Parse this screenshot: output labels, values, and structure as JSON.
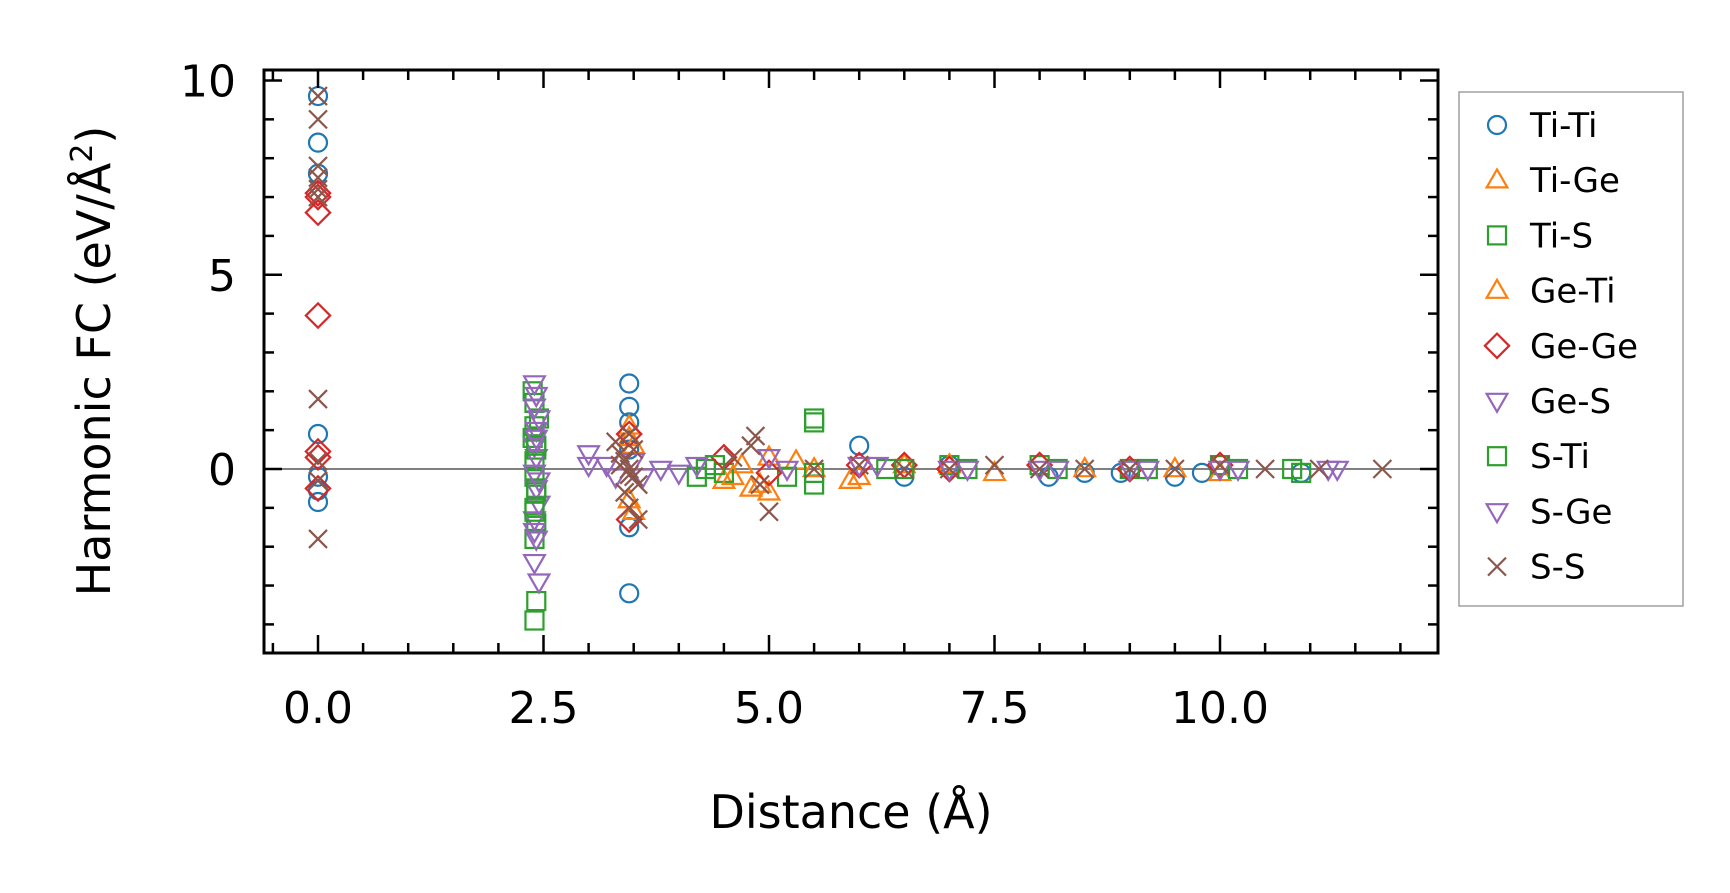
{
  "chart_data": {
    "type": "scatter",
    "title": "",
    "xlabel": "Distance (Å)",
    "ylabel_main": "Harmonic FC (eV/Å",
    "ylabel_sup": "2",
    "ylabel_close": ")",
    "xlim": [
      -0.5,
      12.5
    ],
    "ylim": [
      -4.75,
      10.4
    ],
    "x_ticks": [
      0.0,
      2.5,
      5.0,
      7.5,
      10.0
    ],
    "x_tick_labels": [
      "0.0",
      "2.5",
      "5.0",
      "7.5",
      "10.0"
    ],
    "y_ticks": [
      0,
      5,
      10
    ],
    "y_tick_labels": [
      "0",
      "5",
      "10"
    ],
    "reference_line_y": 0,
    "legend_position": "right",
    "series": [
      {
        "name": "Ti-Ti",
        "marker": "circle",
        "color": "#1f77b4",
        "x": [
          0,
          0,
          0,
          0,
          0,
          0,
          0,
          3.45,
          3.45,
          3.45,
          3.45,
          3.45,
          3.45,
          6.0,
          6.5,
          7.0,
          8.1,
          8.5,
          8.9,
          9.5,
          9.8,
          10.9
        ],
        "y": [
          9.6,
          8.4,
          7.6,
          0.9,
          -0.2,
          -0.55,
          -0.85,
          2.2,
          1.6,
          1.2,
          0.5,
          -1.5,
          -3.2,
          0.6,
          -0.2,
          0.1,
          -0.2,
          -0.1,
          -0.1,
          -0.2,
          -0.1,
          -0.1
        ]
      },
      {
        "name": "Ti-Ge",
        "marker": "triangle-up",
        "color": "#ff7f0e",
        "x": [
          3.45,
          3.45,
          3.5,
          4.5,
          4.7,
          4.9,
          5.0,
          5.3,
          5.9,
          6.5,
          7.5,
          9.5
        ],
        "y": [
          1.1,
          0.8,
          -1.1,
          -0.3,
          0.1,
          -0.4,
          0.3,
          0.2,
          -0.3,
          0.1,
          -0.1,
          0.0
        ]
      },
      {
        "name": "Ti-S",
        "marker": "square",
        "color": "#2ca02c",
        "x": [
          2.38,
          2.4,
          2.45,
          2.4,
          2.38,
          2.42,
          2.4,
          2.4,
          2.42,
          2.4,
          2.42,
          2.4,
          2.42,
          2.4,
          4.3,
          4.5,
          5.2,
          5.5,
          5.5,
          5.5,
          6.3,
          7.0,
          8.0,
          9.0,
          10.0,
          10.9
        ],
        "y": [
          2.0,
          1.7,
          1.3,
          1.1,
          0.8,
          0.5,
          0.2,
          -0.2,
          -0.6,
          -1.0,
          -1.4,
          -1.8,
          -3.4,
          -3.9,
          0.0,
          -0.1,
          -0.2,
          1.3,
          1.2,
          -0.4,
          0.0,
          0.1,
          0.1,
          0.0,
          0.1,
          -0.1
        ]
      },
      {
        "name": "Ge-Ti",
        "marker": "triangle-up",
        "color": "#ff7f0e",
        "x": [
          3.45,
          3.5,
          4.6,
          4.8,
          5.0,
          5.5,
          6.0,
          7.0,
          8.5,
          10.0
        ],
        "y": [
          -0.8,
          0.6,
          -0.2,
          -0.5,
          -0.6,
          0.0,
          -0.2,
          0.1,
          0.0,
          -0.1
        ]
      },
      {
        "name": "Ge-Ge",
        "marker": "diamond",
        "color": "#d62728",
        "x": [
          0,
          0,
          0,
          0,
          0,
          0,
          0,
          3.45,
          3.45,
          4.5,
          5.0,
          6.0,
          6.5,
          7.0,
          8.0,
          9.0,
          10.0
        ],
        "y": [
          7.1,
          7.0,
          6.6,
          3.95,
          0.45,
          0.3,
          -0.5,
          0.9,
          -1.3,
          0.3,
          -0.1,
          0.1,
          0.1,
          0.0,
          0.1,
          0.0,
          0.1
        ]
      },
      {
        "name": "Ge-S",
        "marker": "triangle-down",
        "color": "#9467bd",
        "x": [
          2.4,
          2.42,
          2.4,
          2.45,
          2.42,
          2.4,
          2.42,
          2.4,
          2.42,
          2.45,
          2.4,
          2.42,
          2.4,
          2.45,
          3.0,
          3.0,
          3.3,
          3.5,
          3.8,
          4.0,
          5.0,
          6.0,
          7.0,
          8.0,
          9.0,
          10.0,
          11.3
        ],
        "y": [
          2.2,
          1.9,
          1.6,
          1.3,
          1.0,
          0.6,
          0.3,
          -0.1,
          -0.5,
          -0.9,
          -1.3,
          -1.8,
          -2.4,
          -2.9,
          0.4,
          0.1,
          -0.2,
          0.2,
          0.0,
          -0.1,
          0.3,
          0.1,
          0.0,
          0.0,
          0.0,
          0.0,
          0.0
        ]
      },
      {
        "name": "S-Ti",
        "marker": "square",
        "color": "#2ca02c",
        "x": [
          2.42,
          2.42,
          2.4,
          4.2,
          4.4,
          5.5,
          6.5,
          7.2,
          8.2,
          9.2,
          10.2,
          10.8
        ],
        "y": [
          0.6,
          -0.5,
          -1.1,
          -0.2,
          0.1,
          -0.1,
          0.0,
          0.0,
          0.0,
          0.0,
          0.0,
          0.0
        ]
      },
      {
        "name": "S-Ge",
        "marker": "triangle-down",
        "color": "#9467bd",
        "x": [
          2.42,
          2.45,
          2.4,
          3.2,
          3.6,
          4.2,
          5.2,
          6.2,
          7.2,
          8.2,
          9.2,
          10.2,
          11.2
        ],
        "y": [
          0.8,
          -0.3,
          -1.6,
          0.1,
          -0.2,
          0.1,
          0.0,
          0.1,
          0.0,
          0.0,
          0.0,
          0.0,
          0.0
        ]
      },
      {
        "name": "S-S",
        "marker": "x",
        "color": "#8c564b",
        "x": [
          0,
          0,
          0,
          0,
          0,
          0,
          0,
          0,
          0,
          0,
          3.3,
          3.35,
          3.4,
          3.45,
          3.5,
          3.55,
          3.4,
          3.5,
          3.45,
          3.45,
          3.55,
          3.35,
          3.45,
          4.6,
          4.8,
          4.85,
          4.9,
          5.0,
          5.5,
          6.0,
          6.5,
          7.0,
          7.5,
          8.0,
          8.5,
          9.0,
          9.5,
          10.0,
          10.5,
          11.1,
          11.8
        ],
        "y": [
          9.6,
          9.0,
          7.8,
          7.5,
          7.2,
          7.0,
          1.8,
          0.2,
          -0.3,
          -1.8,
          0.7,
          0.4,
          0.2,
          0.0,
          -0.2,
          -0.4,
          -0.6,
          0.5,
          0.9,
          -1.0,
          -1.3,
          0.1,
          -0.15,
          0.3,
          0.6,
          0.85,
          -0.4,
          -1.1,
          0.0,
          0.1,
          0.0,
          0.0,
          0.1,
          0.0,
          0.0,
          0.0,
          0.0,
          0.1,
          0.0,
          0.0,
          0.0
        ]
      }
    ]
  }
}
